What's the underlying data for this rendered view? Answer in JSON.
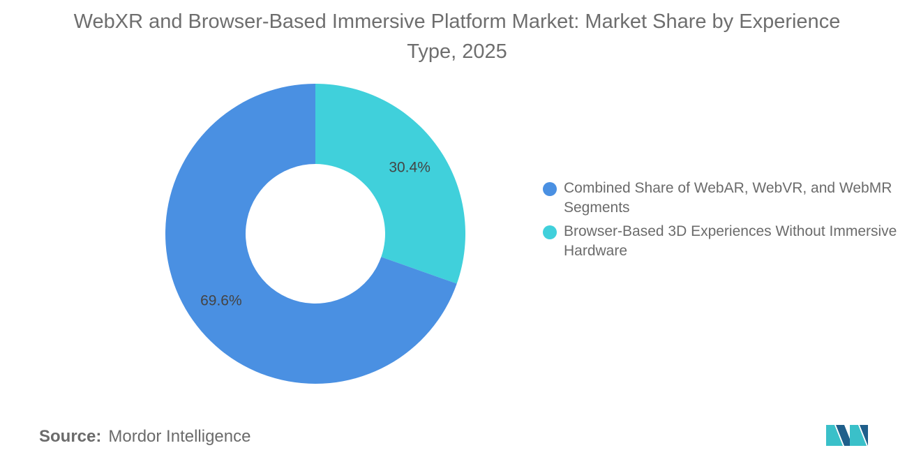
{
  "title": "WebXR and Browser-Based Immersive Platform Market: Market Share by Experience Type, 2025",
  "chart_data": {
    "type": "pie",
    "donut": true,
    "title": "WebXR and Browser-Based Immersive Platform Market: Market Share by Experience Type, 2025",
    "categories": [
      "Combined Share of WebAR, WebVR, and WebMR Segments",
      "Browser-Based 3D Experiences Without Immersive Hardware"
    ],
    "values": [
      69.6,
      30.4
    ],
    "labels": [
      "69.6%",
      "30.4%"
    ],
    "colors": [
      "#4a90e2",
      "#40d0db"
    ],
    "legend_placement": "right"
  },
  "source": {
    "prefix": "Source:",
    "text": "Mordor Intelligence"
  },
  "logo": {
    "icon": "mordor-intelligence-logo-icon",
    "colors": [
      "#1f5f8b",
      "#3ac0c9"
    ]
  }
}
